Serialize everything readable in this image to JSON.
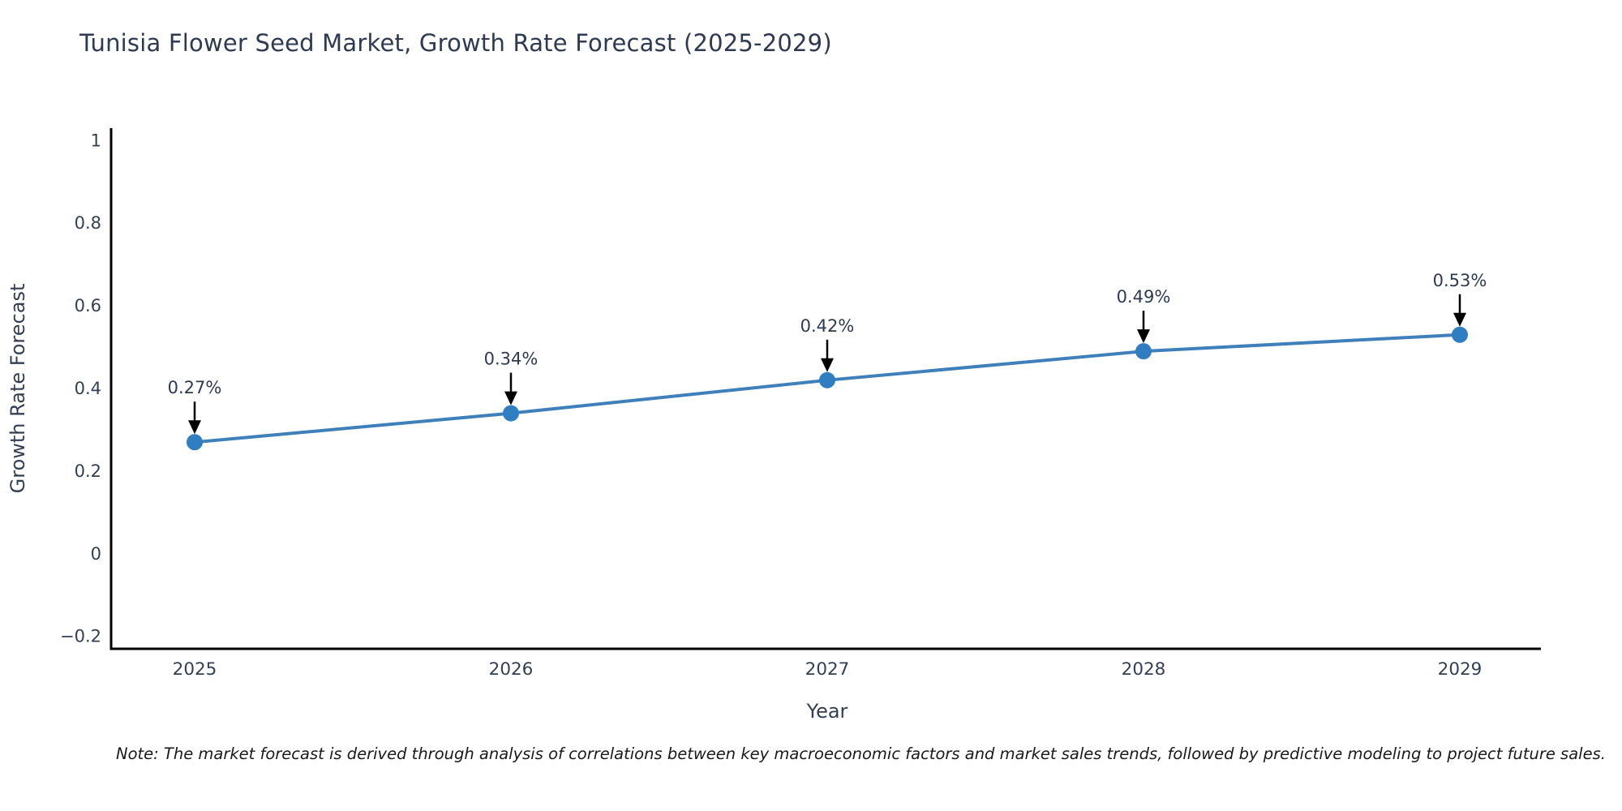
{
  "title": "Tunisia Flower Seed Market, Growth Rate Forecast (2025-2029)",
  "note": "Note: The market forecast is derived through analysis of correlations between key macroeconomic factors and market sales trends, followed by predictive modeling to project future sales.",
  "colors": {
    "line": "#3f80bb",
    "marker": "#2f7ec2",
    "arrow": "#000000",
    "spine": "#000000",
    "tick_text": "#333f52",
    "title_text": "#2e3a52"
  },
  "chart_data": {
    "type": "line",
    "title": "Tunisia Flower Seed Market, Growth Rate Forecast (2025-2029)",
    "x": [
      2025,
      2026,
      2027,
      2028,
      2029
    ],
    "y": [
      0.27,
      0.34,
      0.42,
      0.49,
      0.53
    ],
    "point_labels": [
      "0.27%",
      "0.34%",
      "0.42%",
      "0.49%",
      "0.53%"
    ],
    "xlabel": "Year",
    "ylabel": "Growth Rate Forecast",
    "xtick_labels": [
      "2025",
      "2026",
      "2027",
      "2028",
      "2029"
    ],
    "yticks": [
      1,
      0.8,
      0.6,
      0.4,
      0.2,
      0,
      -0.2
    ],
    "ytick_labels": [
      "1",
      "0.8",
      "0.6",
      "0.4",
      "0.2",
      "0",
      "−0.2"
    ],
    "ylim": [
      -0.23,
      1.03
    ],
    "grid": false,
    "legend_position": "none",
    "annotation_style": "value labels with downward arrows above each point"
  }
}
